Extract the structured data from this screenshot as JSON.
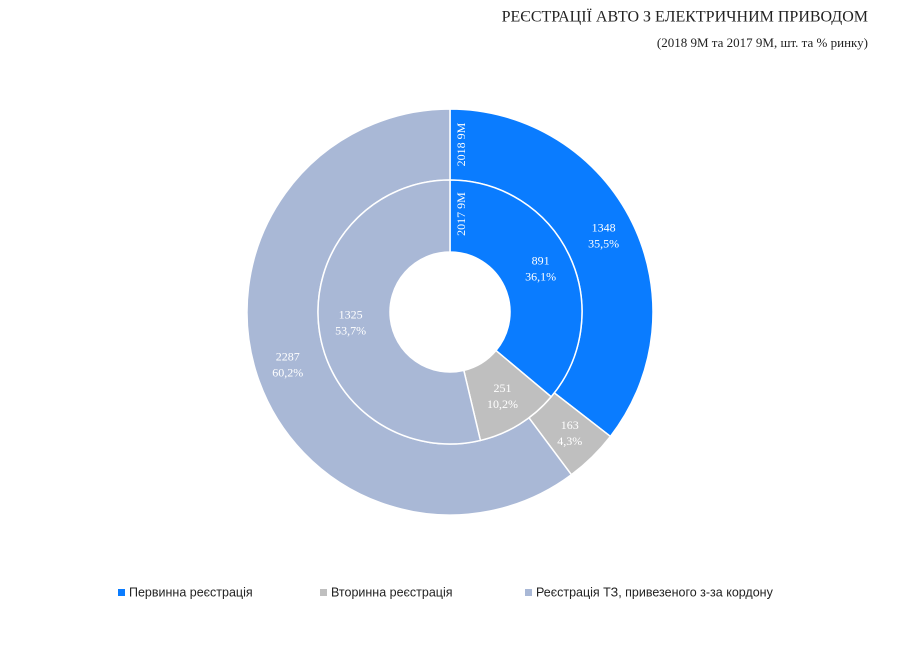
{
  "chart_data": {
    "type": "donut",
    "title": "РЕЄСТРАЦІЇ АВТО З ЕЛЕКТРИЧНИМ ПРИВОДОМ",
    "subtitle": "(2018 9М та 2017 9М, шт. та % ринку)",
    "categories": [
      "Первинна реєстрація",
      "Вторинна реєстрація",
      "Реєстрація ТЗ, привезеного з-за кордону"
    ],
    "colors": [
      "#0a7cff",
      "#bfbfbf",
      "#a9b8d6"
    ],
    "series": [
      {
        "name": "2018 9М",
        "values": [
          1348,
          163,
          2287
        ],
        "shares": [
          35.5,
          4.3,
          60.2
        ],
        "share_labels": [
          "35,5%",
          "4,3%",
          "60,2%"
        ]
      },
      {
        "name": "2017 9М",
        "values": [
          891,
          251,
          1325
        ],
        "shares": [
          36.1,
          10.2,
          53.7
        ],
        "share_labels": [
          "36,1%",
          "10,2%",
          "53,7%"
        ]
      }
    ],
    "legend": "bottom"
  }
}
